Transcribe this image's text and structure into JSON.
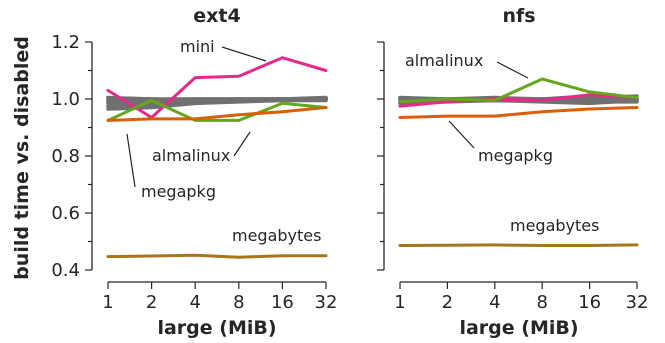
{
  "chart_data": {
    "type": "line",
    "xlabel": "large (MiB)",
    "ylabel": "build time vs. disabled",
    "x_ticks": [
      "1",
      "2",
      "4",
      "8",
      "16",
      "32"
    ],
    "x": [
      1,
      2,
      4,
      8,
      16,
      32
    ],
    "x_scale": "log2",
    "ylim": [
      0.4,
      1.2
    ],
    "y_ticks": [
      "0.4",
      "0.6",
      "0.8",
      "1.0",
      "1.2"
    ],
    "y_ticks_minor": [
      0.5,
      0.7,
      0.9,
      1.1
    ],
    "grid": false,
    "colors": {
      "grey": "#707070",
      "magenta": "#e7298a",
      "green": "#66a61e",
      "orange": "#d95f02",
      "brown": "#a6761d"
    },
    "panels": [
      {
        "title": "ext4",
        "series": [
          {
            "color": "grey",
            "values": [
              0.985,
              0.99,
              0.985,
              0.99,
              0.995,
              0.995
            ]
          },
          {
            "color": "grey",
            "values": [
              0.995,
              0.998,
              1.0,
              1.0,
              1.0,
              1.005
            ]
          },
          {
            "color": "grey",
            "values": [
              0.975,
              0.98,
              0.99,
              0.995,
              0.998,
              1.0
            ]
          },
          {
            "color": "grey",
            "values": [
              1.0,
              1.0,
              0.995,
              1.0,
              1.0,
              1.0
            ]
          },
          {
            "color": "grey",
            "values": [
              0.965,
              0.97,
              0.985,
              0.995,
              1.0,
              1.0
            ]
          },
          {
            "color": "grey",
            "values": [
              0.99,
              0.995,
              0.995,
              0.998,
              1.0,
              1.0
            ]
          },
          {
            "color": "grey",
            "values": [
              1.005,
              1.0,
              1.0,
              1.0,
              1.0,
              1.0
            ]
          },
          {
            "name": "mini",
            "color": "magenta",
            "values": [
              1.03,
              0.935,
              1.075,
              1.08,
              1.145,
              1.1
            ]
          },
          {
            "name": "almalinux",
            "color": "green",
            "values": [
              0.925,
              0.995,
              0.925,
              0.925,
              0.985,
              0.97
            ]
          },
          {
            "name": "megapkg",
            "color": "orange",
            "values": [
              0.925,
              0.93,
              0.93,
              0.945,
              0.955,
              0.97
            ]
          },
          {
            "name": "megabytes",
            "color": "brown",
            "values": [
              0.447,
              0.449,
              0.452,
              0.445,
              0.45,
              0.45
            ]
          }
        ],
        "annotations": [
          {
            "label": "mini"
          },
          {
            "label": "almalinux"
          },
          {
            "label": "megapkg"
          },
          {
            "label": "megabytes"
          }
        ]
      },
      {
        "title": "nfs",
        "series": [
          {
            "color": "grey",
            "values": [
              0.99,
              0.995,
              0.995,
              0.995,
              0.99,
              0.99
            ]
          },
          {
            "color": "grey",
            "values": [
              1.0,
              1.0,
              1.0,
              1.0,
              1.0,
              1.0
            ]
          },
          {
            "color": "grey",
            "values": [
              0.985,
              0.99,
              0.995,
              1.0,
              1.005,
              1.01
            ]
          },
          {
            "color": "grey",
            "values": [
              0.995,
              0.995,
              0.995,
              0.99,
              0.985,
              0.995
            ]
          },
          {
            "color": "grey",
            "values": [
              1.005,
              1.0,
              1.005,
              1.0,
              1.0,
              1.0
            ]
          },
          {
            "color": "grey",
            "values": [
              0.99,
              1.0,
              0.995,
              1.0,
              1.01,
              1.0
            ]
          },
          {
            "color": "magenta",
            "values": [
              0.975,
              0.99,
              1.0,
              0.995,
              1.015,
              1.005
            ]
          },
          {
            "name": "almalinux",
            "color": "green",
            "values": [
              0.99,
              1.0,
              0.995,
              1.07,
              1.025,
              1.005
            ]
          },
          {
            "name": "megapkg",
            "color": "orange",
            "values": [
              0.935,
              0.94,
              0.94,
              0.955,
              0.965,
              0.97
            ]
          },
          {
            "name": "megabytes",
            "color": "brown",
            "values": [
              0.486,
              0.487,
              0.488,
              0.486,
              0.486,
              0.488
            ]
          }
        ],
        "annotations": [
          {
            "label": "almalinux"
          },
          {
            "label": "megapkg"
          },
          {
            "label": "megabytes"
          }
        ]
      }
    ]
  }
}
